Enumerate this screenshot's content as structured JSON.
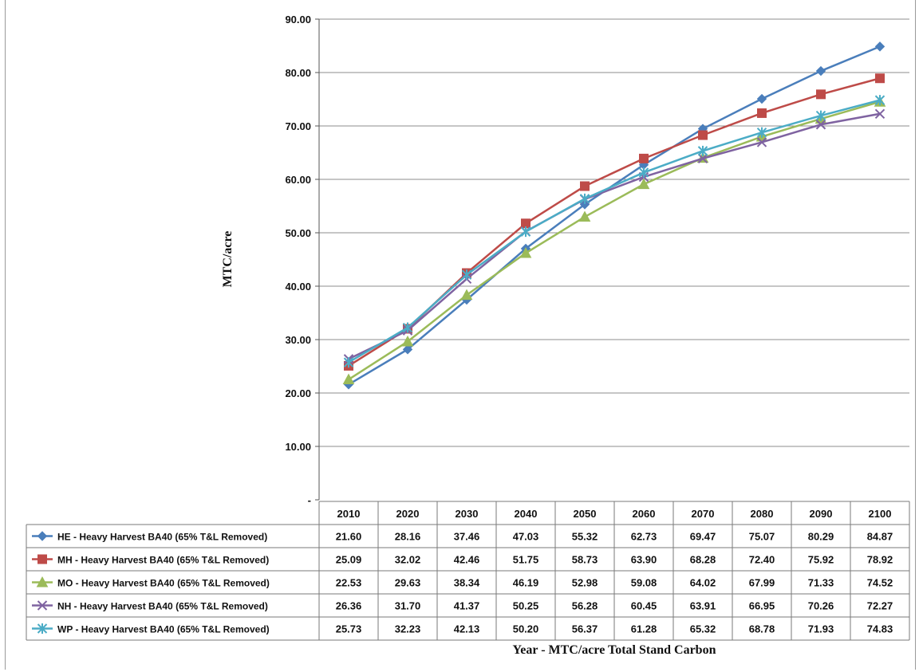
{
  "chart_data": {
    "type": "line",
    "xlabel": "Year - MTC/acre Total Stand Carbon",
    "ylabel": "MTC/acre",
    "ylim": [
      0,
      90
    ],
    "yticks": [
      "-",
      "10.00",
      "20.00",
      "30.00",
      "40.00",
      "50.00",
      "60.00",
      "70.00",
      "80.00",
      "90.00"
    ],
    "categories": [
      "2010",
      "2020",
      "2030",
      "2040",
      "2050",
      "2060",
      "2070",
      "2080",
      "2090",
      "2100"
    ],
    "grid": true,
    "legend": "data table below chart",
    "series": [
      {
        "name": "HE - Heavy Harvest BA40 (65% T&L Removed)",
        "color": "#4a7ebb",
        "marker": "diamond",
        "values": [
          21.6,
          28.16,
          37.46,
          47.03,
          55.32,
          62.73,
          69.47,
          75.07,
          80.29,
          84.87
        ],
        "labels": [
          "21.60",
          "28.16",
          "37.46",
          "47.03",
          "55.32",
          "62.73",
          "69.47",
          "75.07",
          "80.29",
          "84.87"
        ]
      },
      {
        "name": "MH - Heavy Harvest BA40 (65% T&L Removed)",
        "color": "#be4b48",
        "marker": "square",
        "values": [
          25.09,
          32.02,
          42.46,
          51.75,
          58.73,
          63.9,
          68.28,
          72.4,
          75.92,
          78.92
        ],
        "labels": [
          "25.09",
          "32.02",
          "42.46",
          "51.75",
          "58.73",
          "63.90",
          "68.28",
          "72.40",
          "75.92",
          "78.92"
        ]
      },
      {
        "name": "MO - Heavy Harvest BA40 (65% T&L Removed)",
        "color": "#9bbb59",
        "marker": "triangle",
        "values": [
          22.53,
          29.63,
          38.34,
          46.19,
          52.98,
          59.08,
          64.02,
          67.99,
          71.33,
          74.52
        ],
        "labels": [
          "22.53",
          "29.63",
          "38.34",
          "46.19",
          "52.98",
          "59.08",
          "64.02",
          "67.99",
          "71.33",
          "74.52"
        ]
      },
      {
        "name": "NH - Heavy Harvest BA40 (65% T&L Removed)",
        "color": "#7f63a1",
        "marker": "x",
        "values": [
          26.36,
          31.7,
          41.37,
          50.25,
          56.28,
          60.45,
          63.91,
          66.95,
          70.26,
          72.27
        ],
        "labels": [
          "26.36",
          "31.70",
          "41.37",
          "50.25",
          "56.28",
          "60.45",
          "63.91",
          "66.95",
          "70.26",
          "72.27"
        ]
      },
      {
        "name": "WP - Heavy Harvest BA40 (65% T&L Removed)",
        "color": "#4bacc6",
        "marker": "star",
        "values": [
          25.73,
          32.23,
          42.13,
          50.2,
          56.37,
          61.28,
          65.32,
          68.78,
          71.93,
          74.83
        ],
        "labels": [
          "25.73",
          "32.23",
          "42.13",
          "50.20",
          "56.37",
          "61.28",
          "65.32",
          "68.78",
          "71.93",
          "74.83"
        ]
      }
    ]
  }
}
